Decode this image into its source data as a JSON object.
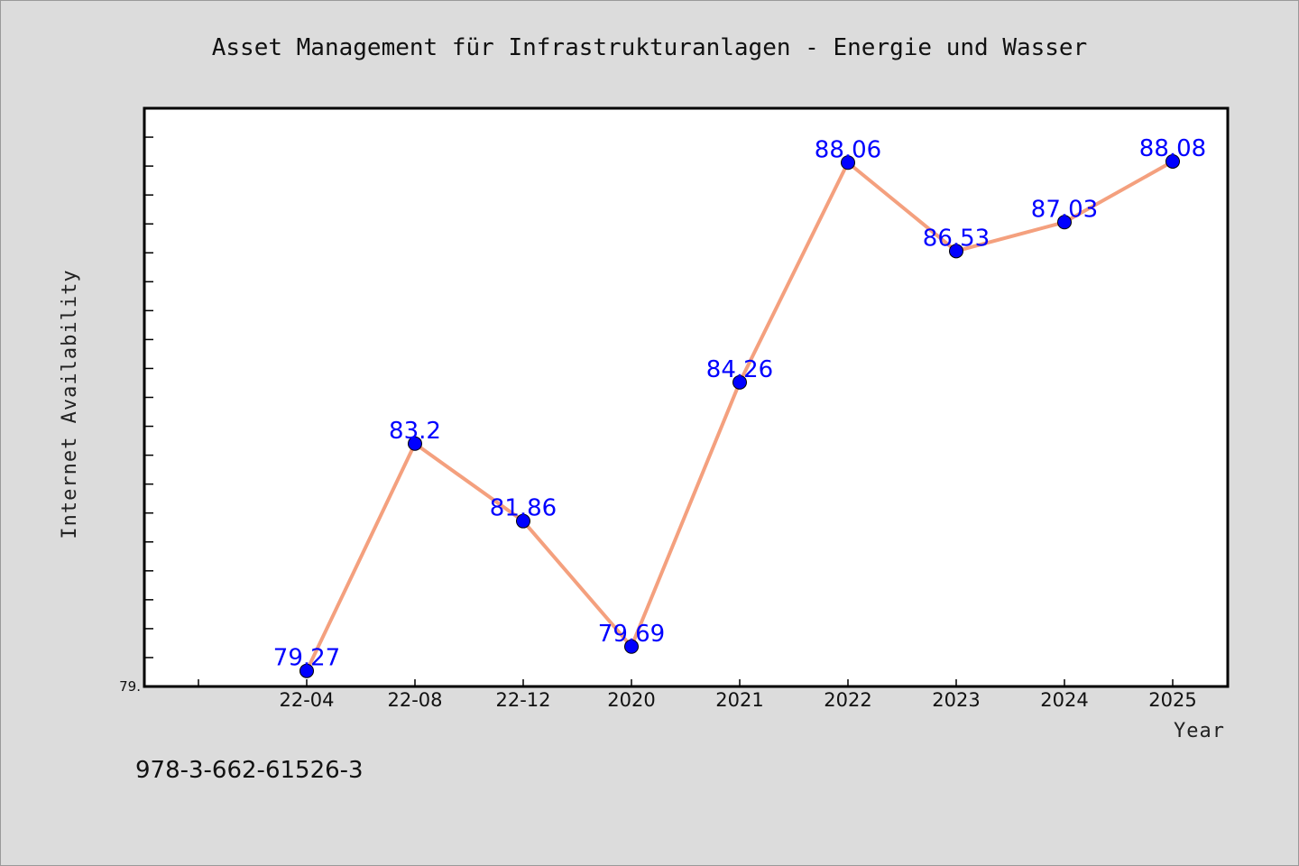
{
  "chart_data": {
    "type": "line",
    "title": "Asset Management für Infrastrukturanlagen - Energie und Wasser",
    "xlabel": "Year",
    "ylabel": "Internet Availability",
    "y_min_tick_label": "79.",
    "ylim": [
      79.0,
      89.0
    ],
    "categories": [
      "22-04",
      "22-08",
      "22-12",
      "2020",
      "2021",
      "2022",
      "2023",
      "2024",
      "2025"
    ],
    "values": [
      79.27,
      83.2,
      81.86,
      79.69,
      84.26,
      88.06,
      86.53,
      87.03,
      88.08
    ],
    "data_labels": [
      "79.27",
      "83.2",
      "81.86",
      "79.69",
      "84.26",
      "88.06",
      "86.53",
      "87.03",
      "88.08"
    ],
    "grid": false,
    "legend": "none",
    "colors": {
      "line": "#f4a07e",
      "marker": "#0000ff",
      "label": "#0000ff"
    }
  },
  "footnote": "978-3-662-61526-3"
}
